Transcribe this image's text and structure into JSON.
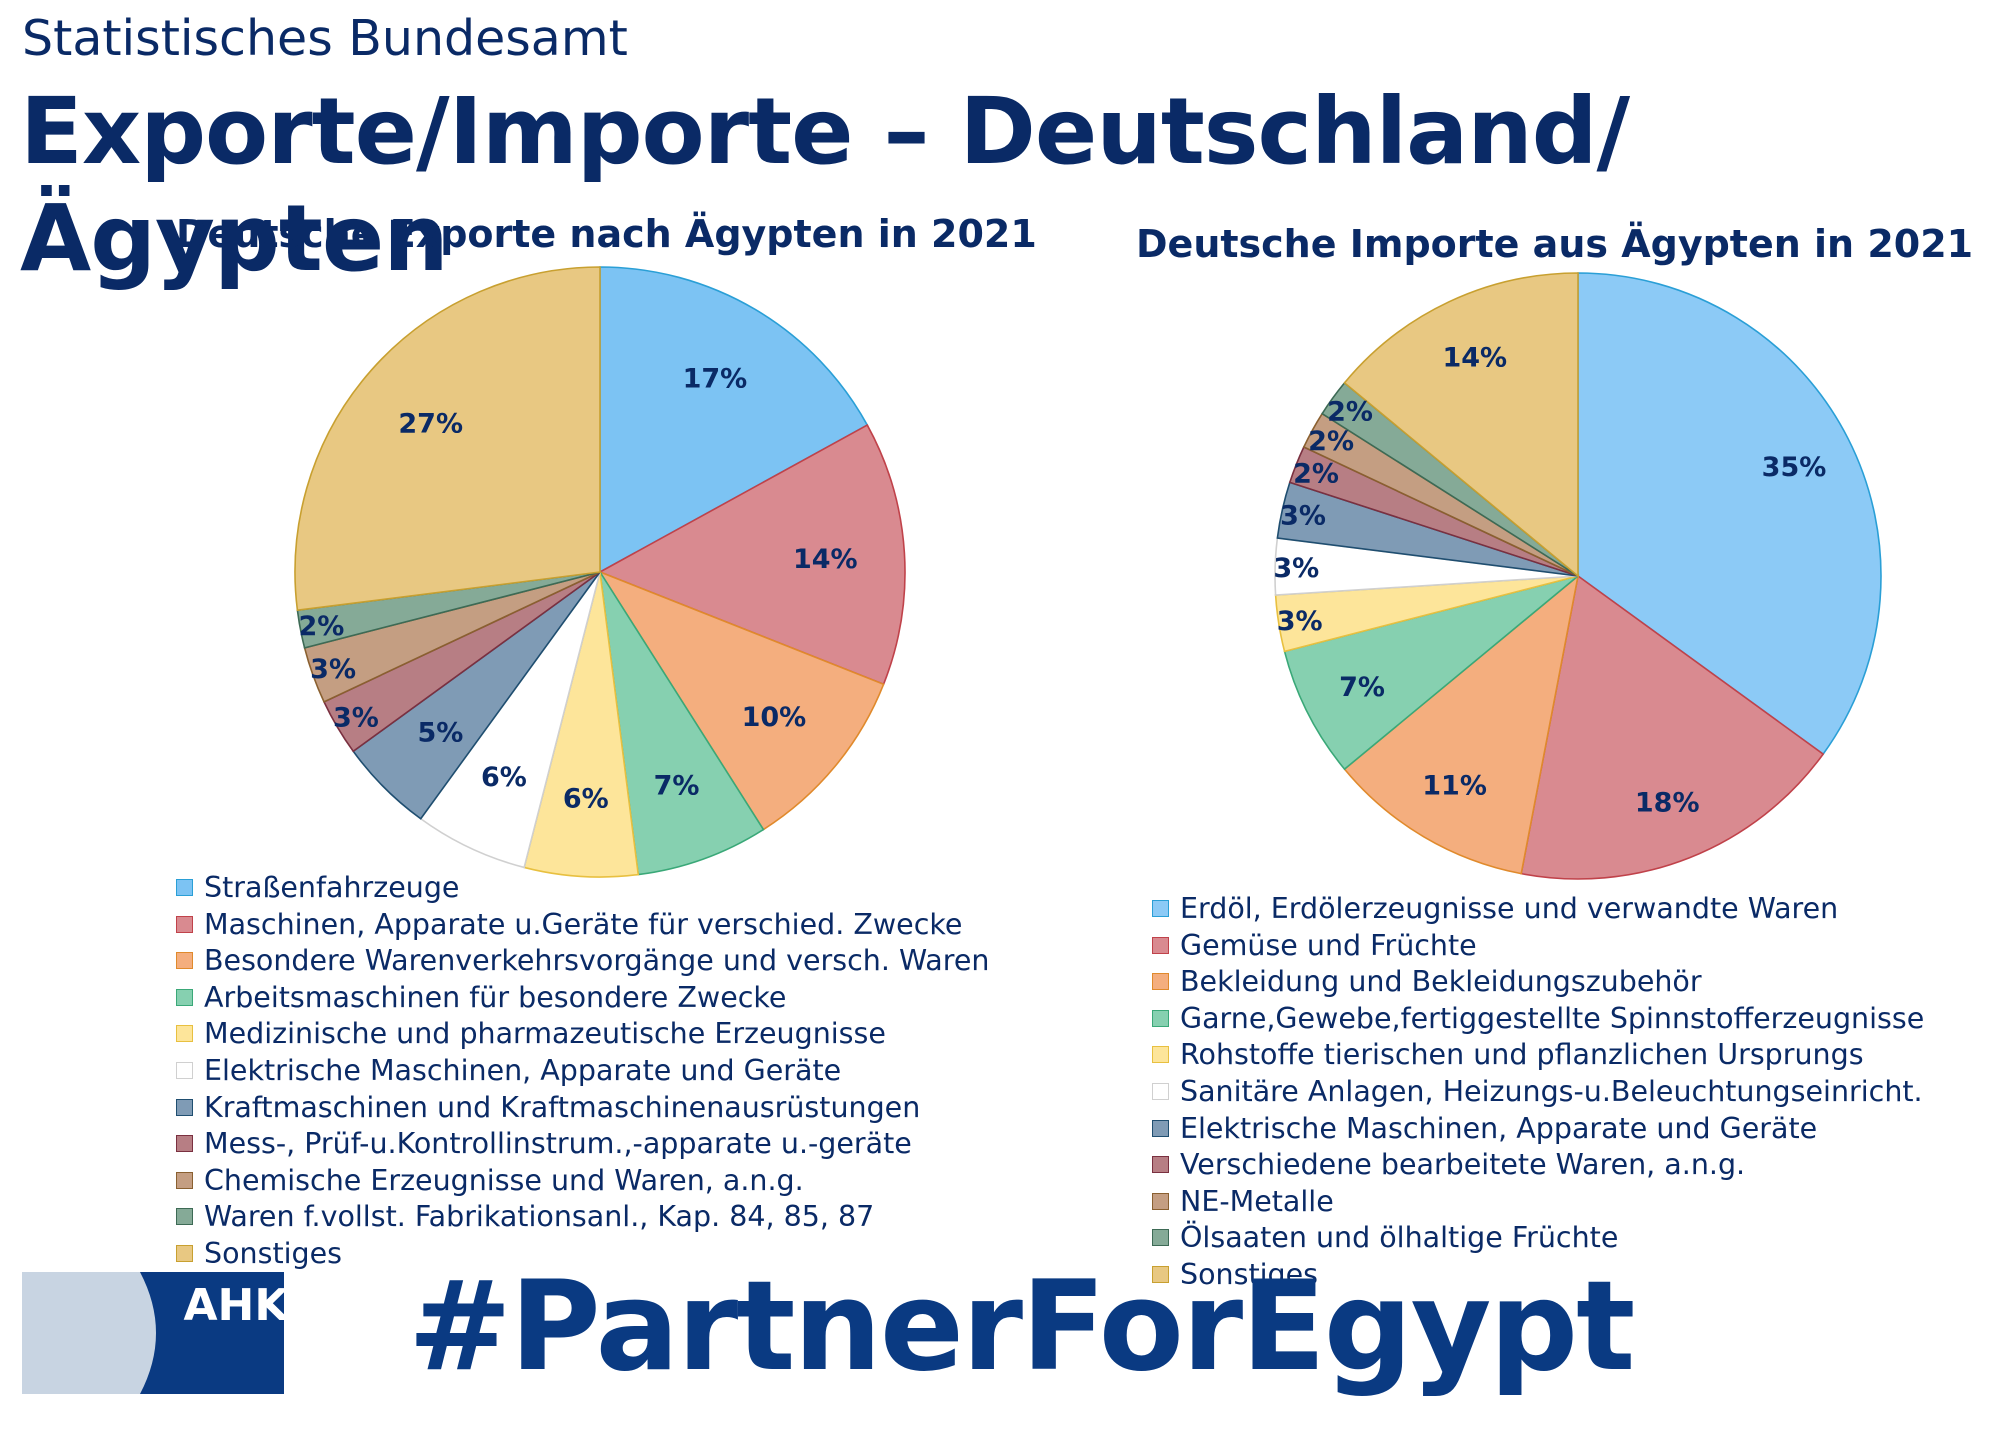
{
  "header": {
    "source": "Statistisches Bundesamt",
    "title": "Exporte/Importe – Deutschland/Ägypten"
  },
  "chart_data": [
    {
      "type": "pie",
      "title": "Deutsche Exporte nach Ägypten in 2021",
      "start_angle_deg": 0,
      "direction": "clockwise",
      "categories": [
        "Straßenfahrzeuge",
        "Maschinen, Apparate u.Geräte für verschied. Zwecke",
        "Besondere Warenverkehrsvorgänge und versch. Waren",
        "Arbeitsmaschinen für besondere Zwecke",
        "Medizinische und pharmazeutische Erzeugnisse",
        "Elektrische Maschinen, Apparate und Geräte",
        "Kraftmaschinen und Kraftmaschinenausrüstungen",
        "Mess-, Prüf-u.Kontrollinstrum.,-apparate u.-geräte",
        "Chemische Erzeugnisse und Waren, a.n.g.",
        "Waren f.vollst. Fabrikationsanl., Kap. 84, 85, 87",
        "Sonstiges"
      ],
      "values": [
        17,
        14,
        10,
        7,
        6,
        6,
        5,
        3,
        3,
        2,
        27
      ],
      "labels": [
        "17%",
        "14%",
        "10%",
        "7%",
        "6%",
        "6%",
        "5%",
        "3%",
        "3%",
        "2%",
        "27%"
      ],
      "colors": [
        "#7cc3f3",
        "#d98a90",
        "#f4ae7e",
        "#86d0b0",
        "#fde59a",
        "#ffffff",
        "#7f9bb5",
        "#b77e84",
        "#c49e82",
        "#85aa97",
        "#e8c882"
      ],
      "edge_colors": [
        "#2a9fd6",
        "#c0424a",
        "#e08a2c",
        "#3aa878",
        "#e8c040",
        "#d0d0d0",
        "#1f4e70",
        "#7a3040",
        "#8a6030",
        "#3d6a55",
        "#c8a030"
      ],
      "legend_position": "bottom"
    },
    {
      "type": "pie",
      "title": "Deutsche Importe aus Ägypten in 2021",
      "start_angle_deg": 0,
      "direction": "clockwise",
      "categories": [
        "Erdöl, Erdölerzeugnisse und verwandte Waren",
        "Gemüse und Früchte",
        "Bekleidung und Bekleidungszubehör",
        "Garne,Gewebe,fertiggestellte Spinnstofferzeugnisse",
        "Rohstoffe tierischen und pflanzlichen Ursprungs",
        "Sanitäre Anlagen, Heizungs-u.Beleuchtungseinricht.",
        "Elektrische Maschinen, Apparate und Geräte",
        "Verschiedene bearbeitete Waren, a.n.g.",
        "NE-Metalle",
        "Ölsaaten und ölhaltige Früchte",
        "Sonstiges"
      ],
      "values": [
        35,
        18,
        11,
        7,
        3,
        3,
        3,
        2,
        2,
        2,
        14
      ],
      "labels": [
        "35%",
        "18%",
        "11%",
        "7%",
        "3%",
        "3%",
        "3%",
        "2%",
        "2%",
        "2%",
        "14%"
      ],
      "colors": [
        "#8ccaf6",
        "#d98a90",
        "#f4ae7e",
        "#86d0b0",
        "#fde59a",
        "#ffffff",
        "#7f9bb5",
        "#b77e84",
        "#c49e82",
        "#85aa97",
        "#e8c882"
      ],
      "edge_colors": [
        "#2a9fd6",
        "#c0424a",
        "#e08a2c",
        "#3aa878",
        "#e8c040",
        "#d0d0d0",
        "#1f4e70",
        "#7a3040",
        "#8a6030",
        "#3d6a55",
        "#c8a030"
      ],
      "legend_position": "bottom"
    }
  ],
  "footer": {
    "logo_text": "AHK",
    "hashtag": "#PartnerForEgypt",
    "colors": {
      "brand": "#0a3a82",
      "logo_light": "#c8d4e2"
    }
  }
}
